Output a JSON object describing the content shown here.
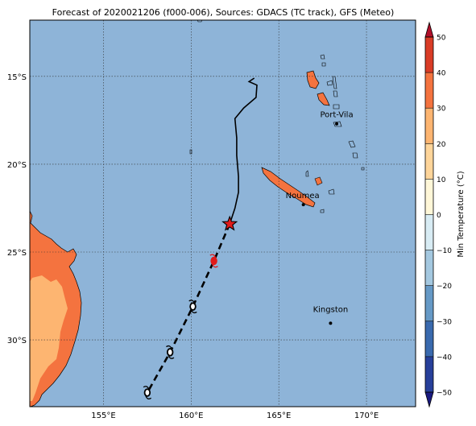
{
  "title": "Forecast of 2020021206 (f000-006), Sources: GDACS (TC track), GFS (Meteo)",
  "map": {
    "lat_range": [
      -33.8,
      -11.8
    ],
    "lon_range": [
      150.8,
      172.8
    ],
    "gridlines": true,
    "lat_ticks": [
      {
        "value": -15,
        "label": "15°S"
      },
      {
        "value": -20,
        "label": "20°S"
      },
      {
        "value": -25,
        "label": "25°S"
      },
      {
        "value": -30,
        "label": "30°S"
      }
    ],
    "lon_ticks": [
      {
        "value": 155,
        "label": "155°E"
      },
      {
        "value": 160,
        "label": "160°E"
      },
      {
        "value": 165,
        "label": "165°E"
      },
      {
        "value": 170,
        "label": "170°E"
      }
    ],
    "colors": {
      "ocean": "#8eb4d8",
      "land_warm": "#f4733f",
      "land_mild": "#fdb571",
      "track": "#000000",
      "current_position": "#e11a1a"
    },
    "places": [
      {
        "name": "Port-Vila",
        "lat": -17.7,
        "lon": 168.3
      },
      {
        "name": "Noumea",
        "lat": -22.3,
        "lon": 166.4
      },
      {
        "name": "Kingston",
        "lat": -29.05,
        "lon": 167.95
      }
    ],
    "past_track": [
      [
        -15.1,
        163.6
      ],
      [
        -15.3,
        163.3
      ],
      [
        -15.5,
        163.75
      ],
      [
        -16.2,
        163.7
      ],
      [
        -16.8,
        163.0
      ],
      [
        -17.4,
        162.5
      ],
      [
        -18.5,
        162.6
      ],
      [
        -19.5,
        162.6
      ],
      [
        -20.7,
        162.7
      ],
      [
        -21.6,
        162.7
      ],
      [
        -22.5,
        162.5
      ],
      [
        -23.4,
        162.2
      ]
    ],
    "forecast_track": [
      [
        -23.4,
        162.2
      ],
      [
        -25.5,
        161.3
      ],
      [
        -28.1,
        160.1
      ],
      [
        -30.7,
        158.8
      ],
      [
        -33.0,
        157.5
      ]
    ],
    "current_position": {
      "lat": -23.4,
      "lon": 162.2,
      "marker": "star"
    },
    "forecast_points": [
      {
        "lat": -25.5,
        "lon": 161.3,
        "symbol": "storm",
        "color": "#e11a1a"
      },
      {
        "lat": -28.1,
        "lon": 160.1,
        "symbol": "low",
        "color": "#ffffff"
      },
      {
        "lat": -30.7,
        "lon": 158.8,
        "symbol": "low",
        "color": "#ffffff"
      },
      {
        "lat": -33.0,
        "lon": 157.5,
        "symbol": "low",
        "color": "#ffffff"
      }
    ]
  },
  "colorbar": {
    "label": "Min Temperature (°C)",
    "min": -50,
    "max": 50,
    "step": 10,
    "extend": "both",
    "ticks": [
      "50",
      "40",
      "30",
      "20",
      "10",
      "0",
      "−10",
      "−20",
      "−30",
      "−40",
      "−50"
    ],
    "colors": [
      "#1a1a80",
      "#27409a",
      "#3a6aae",
      "#6699c6",
      "#a4c8e0",
      "#d8ecf4",
      "#fff7d8",
      "#fed59a",
      "#fdb571",
      "#f4733f",
      "#d93c26",
      "#b10f2a"
    ]
  }
}
